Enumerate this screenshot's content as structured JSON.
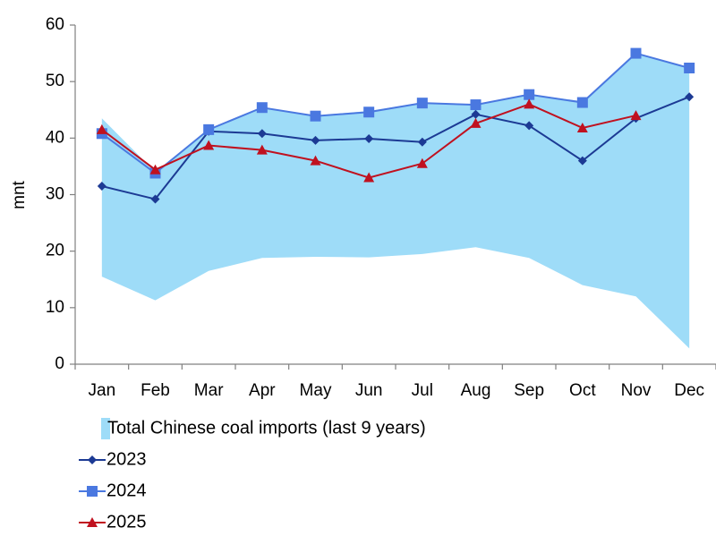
{
  "chart_data": {
    "type": "line",
    "y_label": "mnt",
    "categories": [
      "Jan",
      "Feb",
      "Mar",
      "Apr",
      "May",
      "Jun",
      "Jul",
      "Aug",
      "Sep",
      "Oct",
      "Nov",
      "Dec"
    ],
    "ylim": [
      0,
      60
    ],
    "yticks": [
      0,
      10,
      20,
      30,
      40,
      50,
      60
    ],
    "band": {
      "name": "Total Chinese coal imports (last 9 years)",
      "color": "#9edcf8",
      "low": [
        15.5,
        11.3,
        16.5,
        18.8,
        19.0,
        18.9,
        19.5,
        20.7,
        18.8,
        14.0,
        12.0,
        2.8
      ],
      "high": [
        43.5,
        34.0,
        41.5,
        45.5,
        44.0,
        44.8,
        46.3,
        46.0,
        47.8,
        46.5,
        55.0,
        52.5
      ]
    },
    "series": [
      {
        "name": "2023",
        "color": "#1c3a94",
        "marker": "diamond",
        "values": [
          31.5,
          29.2,
          41.2,
          40.8,
          39.6,
          39.9,
          39.3,
          44.2,
          42.2,
          36.0,
          43.5,
          47.3
        ]
      },
      {
        "name": "2024",
        "color": "#4a78e0",
        "marker": "square",
        "values": [
          40.8,
          33.8,
          41.5,
          45.4,
          43.9,
          44.6,
          46.2,
          45.9,
          47.7,
          46.3,
          55.0,
          52.4
        ]
      },
      {
        "name": "2025",
        "color": "#c0111f",
        "marker": "triangle",
        "values": [
          41.5,
          34.4,
          38.7,
          37.9,
          36.0,
          33.0,
          35.5,
          42.6,
          46.0,
          41.8,
          44.0,
          null
        ]
      }
    ]
  }
}
